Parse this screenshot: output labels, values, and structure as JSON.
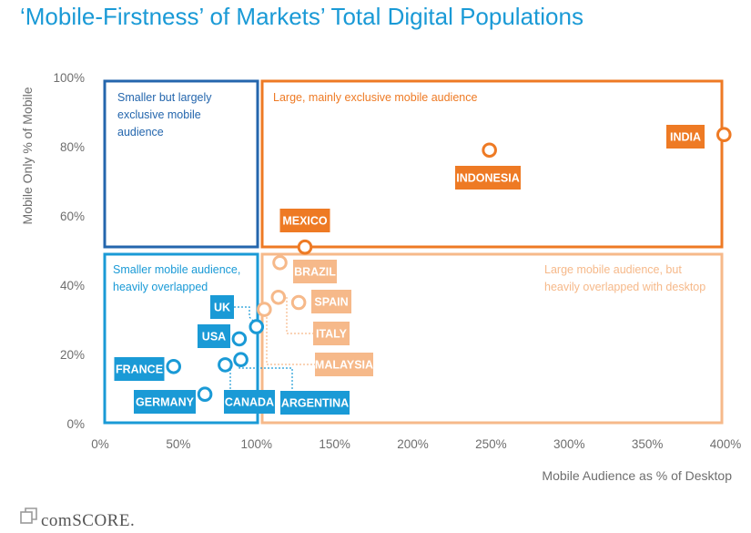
{
  "chart_data": {
    "type": "scatter",
    "title": "‘Mobile-Firstness’ of Markets’ Total Digital Populations",
    "xlabel": "Mobile Audience as % of Desktop",
    "ylabel": "Mobile Only % of Mobile",
    "xlim": [
      0,
      400
    ],
    "ylim": [
      0,
      100
    ],
    "x_ticks": [
      "0%",
      "50%",
      "100%",
      "150%",
      "200%",
      "250%",
      "300%",
      "350%",
      "400%"
    ],
    "y_ticks": [
      "0%",
      "20%",
      "40%",
      "60%",
      "80%",
      "100%"
    ],
    "grid": false,
    "legend": "none",
    "regions": [
      {
        "id": "top-left",
        "text": [
          "Smaller but largely",
          "exclusive mobile",
          "audience"
        ],
        "color": "#2466ad"
      },
      {
        "id": "top-right",
        "text": [
          "Large, mainly exclusive mobile audience"
        ],
        "color": "#ee7a24"
      },
      {
        "id": "bottom-left",
        "text": [
          "Smaller mobile audience,",
          "heavily overlapped"
        ],
        "color": "#1a9ad6"
      },
      {
        "id": "bottom-right",
        "text": [
          "Large mobile audience, but",
          "heavily overlapped with desktop"
        ],
        "color": "#f6b98a"
      }
    ],
    "points": [
      {
        "label": "INDIA",
        "x": 399,
        "y": 83.5,
        "group": "orange"
      },
      {
        "label": "INDONESIA",
        "x": 249,
        "y": 79,
        "group": "orange"
      },
      {
        "label": "MEXICO",
        "x": 131,
        "y": 51,
        "group": "orange"
      },
      {
        "label": "BRAZIL",
        "x": 115,
        "y": 46.5,
        "group": "peach"
      },
      {
        "label": "SPAIN",
        "x": 127,
        "y": 35,
        "group": "peach"
      },
      {
        "label": "ITALY",
        "x": 114,
        "y": 36.5,
        "group": "peach"
      },
      {
        "label": "MALAYSIA",
        "x": 105,
        "y": 33,
        "group": "peach"
      },
      {
        "label": "UK",
        "x": 100,
        "y": 28,
        "group": "blue"
      },
      {
        "label": "USA",
        "x": 89,
        "y": 24.5,
        "group": "blue"
      },
      {
        "label": "FRANCE",
        "x": 47,
        "y": 16.5,
        "group": "blue"
      },
      {
        "label": "GERMANY",
        "x": 67,
        "y": 8.5,
        "group": "blue"
      },
      {
        "label": "CANADA",
        "x": 80,
        "y": 17,
        "group": "blue"
      },
      {
        "label": "ARGENTINA",
        "x": 90,
        "y": 18.5,
        "group": "blue"
      }
    ]
  },
  "colors": {
    "orange": "#ee7a24",
    "peach": "#f6b98a",
    "blue": "#1a9ad6",
    "navy": "#2466ad",
    "axis_text": "#6e6e6e"
  },
  "brand": {
    "logo_text": "comSCORE.",
    "logo_icon": "comscore-box-icon"
  }
}
